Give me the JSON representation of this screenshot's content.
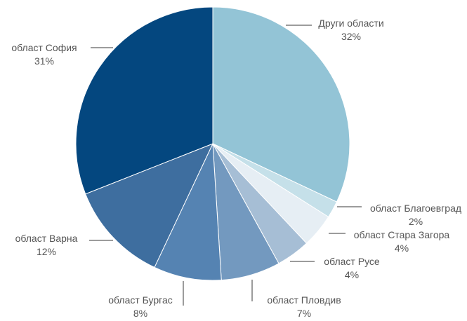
{
  "chart_data": {
    "type": "pie",
    "title": "",
    "slices": [
      {
        "name": "Други области",
        "label": "32%",
        "value": 32,
        "color": "#93c4d6"
      },
      {
        "name": "област Благоевград",
        "label": "2%",
        "value": 2,
        "color": "#c5e0e9"
      },
      {
        "name": "област Стара Загора",
        "label": "4%",
        "value": 4,
        "color": "#e6eef4"
      },
      {
        "name": "област Русе",
        "label": "4%",
        "value": 4,
        "color": "#a6bed5"
      },
      {
        "name": "област Пловдив",
        "label": "7%",
        "value": 7,
        "color": "#7399bf"
      },
      {
        "name": "област Бургас",
        "label": "8%",
        "value": 8,
        "color": "#5583b2"
      },
      {
        "name": "област Варна",
        "label": "12%",
        "value": 12,
        "color": "#3e6e9f"
      },
      {
        "name": "област София",
        "label": "31%",
        "value": 31,
        "color": "#04477f"
      }
    ]
  }
}
